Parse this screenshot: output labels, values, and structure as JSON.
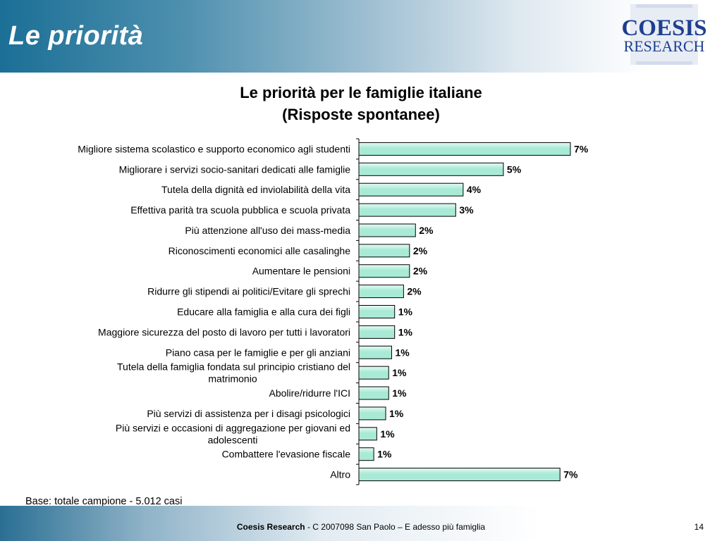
{
  "slide": {
    "title": "Le priorità",
    "logo_line1": "COESIS",
    "logo_line2": "RESEARCH",
    "base_note": "Base: totale campione - 5.012 casi",
    "footer_brand": "Coesis Research",
    "footer_rest": " - C 2007098  San Paolo – E adesso più famiglia",
    "page_number": "14"
  },
  "colors": {
    "bar_fill": "#a8ead6",
    "bar_fill_light": "#e6faf3",
    "bar_stroke": "#000000",
    "logo_blue": "#1f3f8f",
    "header_blue": "#1b6f96"
  },
  "chart_data": {
    "type": "bar",
    "orientation": "horizontal",
    "title": [
      "Le priorità per le famiglie italiane",
      "(Risposte spontanee)"
    ],
    "xlim": [
      0,
      8
    ],
    "grid": false,
    "categories": [
      [
        "Migliore sistema scolastico e supporto economico agli studenti"
      ],
      [
        "Migliorare i servizi socio-sanitari dedicati alle famiglie"
      ],
      [
        "Tutela della dignità ed inviolabilità della vita"
      ],
      [
        "Effettiva parità tra scuola pubblica e scuola privata"
      ],
      [
        "Più attenzione all'uso dei mass-media"
      ],
      [
        "Riconoscimenti economici alle casalinghe"
      ],
      [
        "Aumentare le pensioni"
      ],
      [
        "Ridurre gli stipendi ai politici/Evitare gli sprechi"
      ],
      [
        "Educare alla famiglia e alla cura dei figli"
      ],
      [
        "Maggiore sicurezza del posto di lavoro per tutti i lavoratori"
      ],
      [
        "Piano casa per le famiglie e per gli anziani"
      ],
      [
        "Tutela della famiglia fondata sul principio cristiano del",
        "matrimonio"
      ],
      [
        "Abolire/ridurre l'ICI"
      ],
      [
        "Più servizi di assistenza per i disagi psicologici"
      ],
      [
        "Più servizi e occasioni di aggregazione per giovani ed",
        "adolescenti"
      ],
      [
        "Combattere l'evasione fiscale"
      ],
      [
        "Altro"
      ]
    ],
    "values": [
      7.1,
      4.85,
      3.5,
      3.25,
      1.9,
      1.7,
      1.7,
      1.5,
      1.2,
      1.2,
      1.1,
      1.0,
      1.0,
      0.9,
      0.6,
      0.5,
      6.75
    ],
    "data_labels": [
      "7%",
      "5%",
      "4%",
      "3%",
      "2%",
      "2%",
      "2%",
      "2%",
      "1%",
      "1%",
      "1%",
      "1%",
      "1%",
      "1%",
      "1%",
      "1%",
      "7%"
    ]
  }
}
